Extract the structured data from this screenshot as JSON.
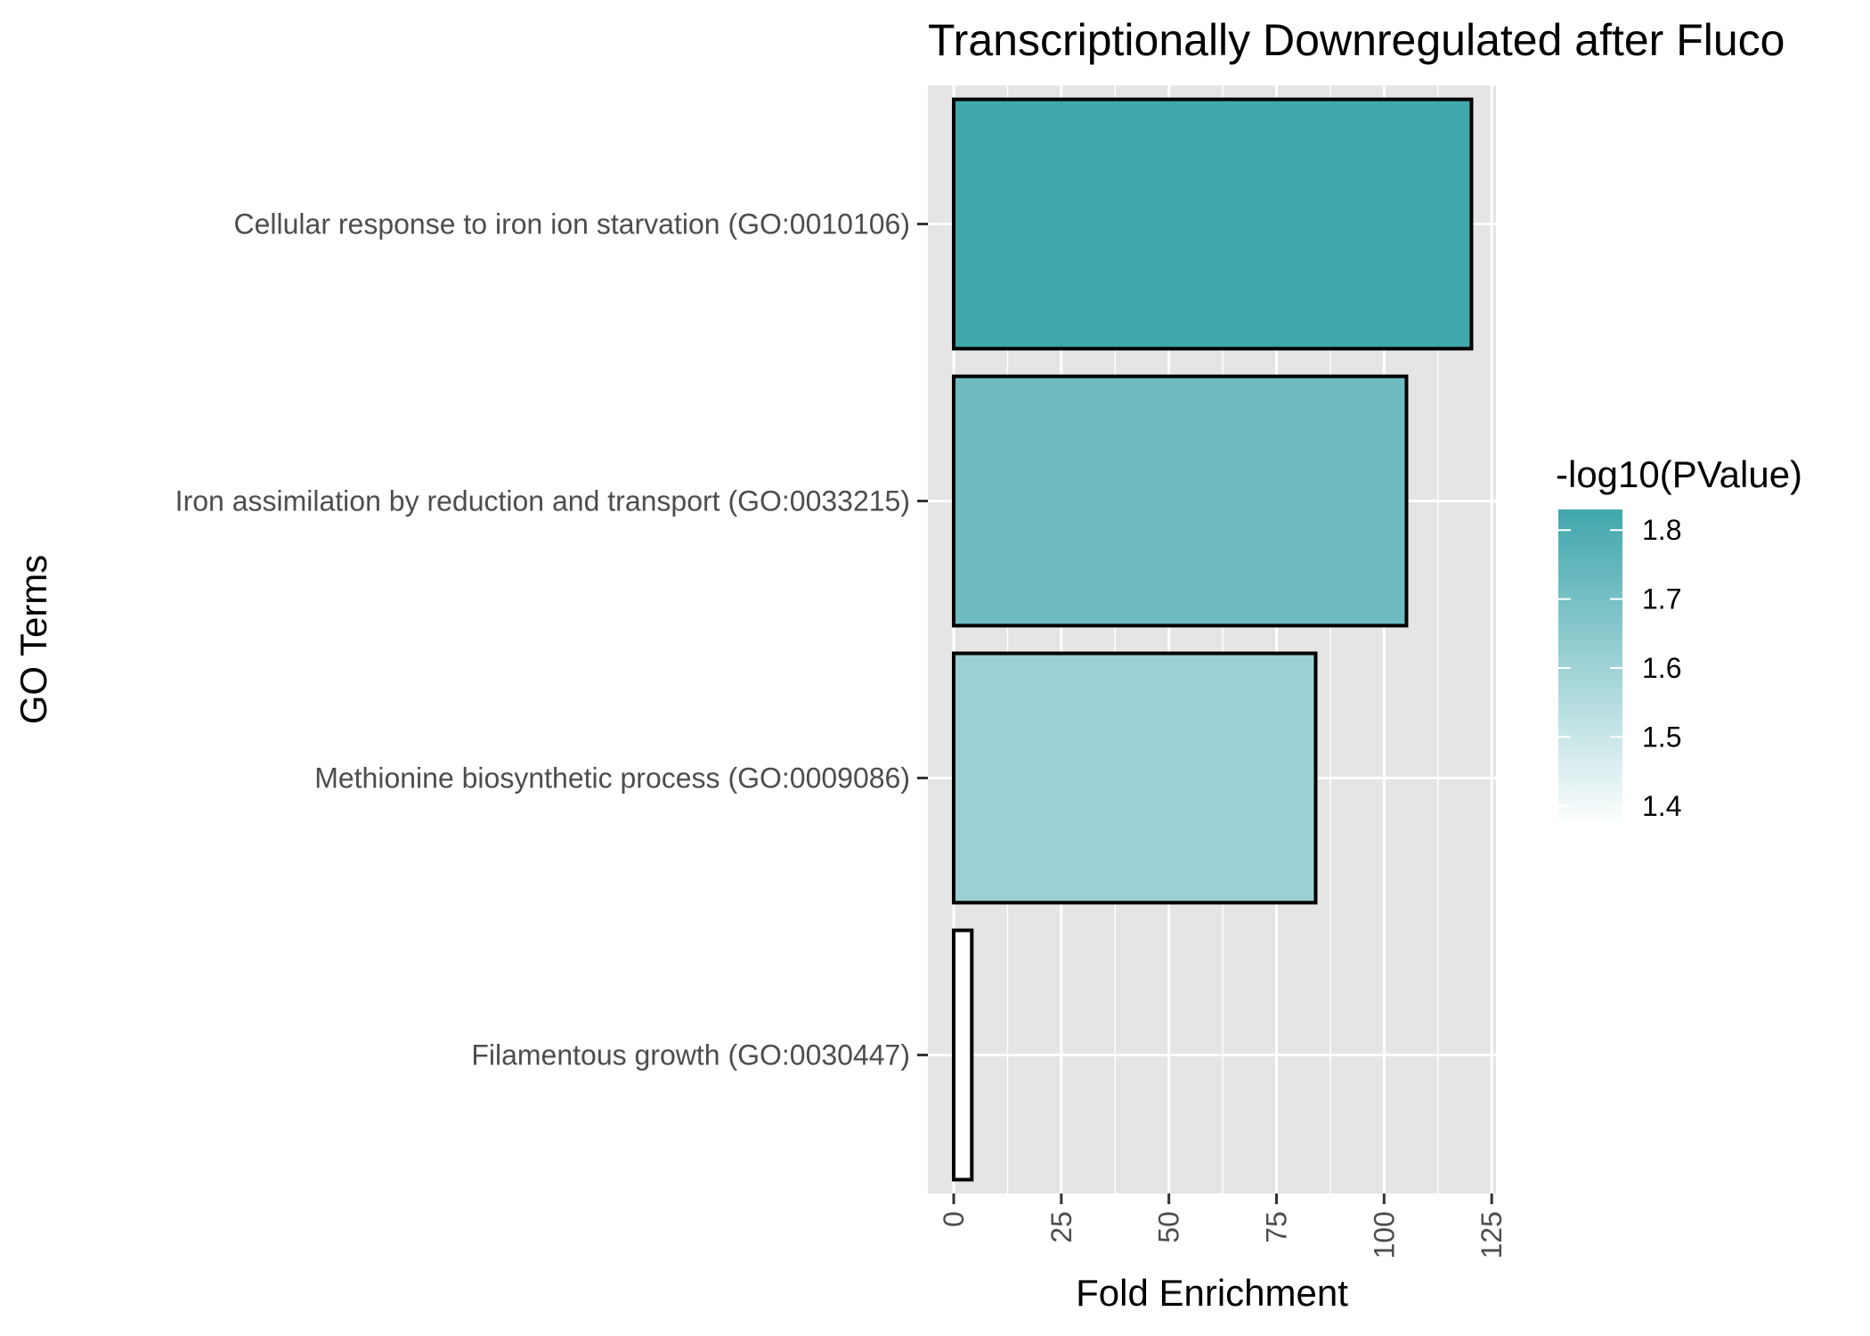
{
  "chart_data": {
    "type": "bar",
    "orientation": "horizontal",
    "title": "Transcriptionally Downregulated after Fluco",
    "xlabel": "Fold Enrichment",
    "ylabel": "GO Terms",
    "categories": [
      "Cellular response to iron ion starvation (GO:0010106)",
      "Iron assimilation by reduction and transport (GO:0033215)",
      "Methionine biosynthetic process (GO:0009086)",
      "Filamentous growth (GO:0030447)"
    ],
    "values": [
      120.3,
      105.2,
      84.1,
      4.2
    ],
    "color_values": [
      1.83,
      1.72,
      1.61,
      1.37
    ],
    "xlim": [
      -6,
      126
    ],
    "x_ticks": [
      0,
      25,
      50,
      75,
      100,
      125
    ],
    "grid": true,
    "legend": {
      "title": "-log10(PValue)",
      "placement": "right",
      "ticks": [
        1.4,
        1.5,
        1.6,
        1.7,
        1.8
      ],
      "range": [
        1.37,
        1.83
      ],
      "low_color": "#ffffff",
      "high_color": "#40a7ad"
    },
    "panel_color": "#e5e5e5",
    "grid_color": "#ffffff",
    "bar_outline_color": "#000000"
  }
}
